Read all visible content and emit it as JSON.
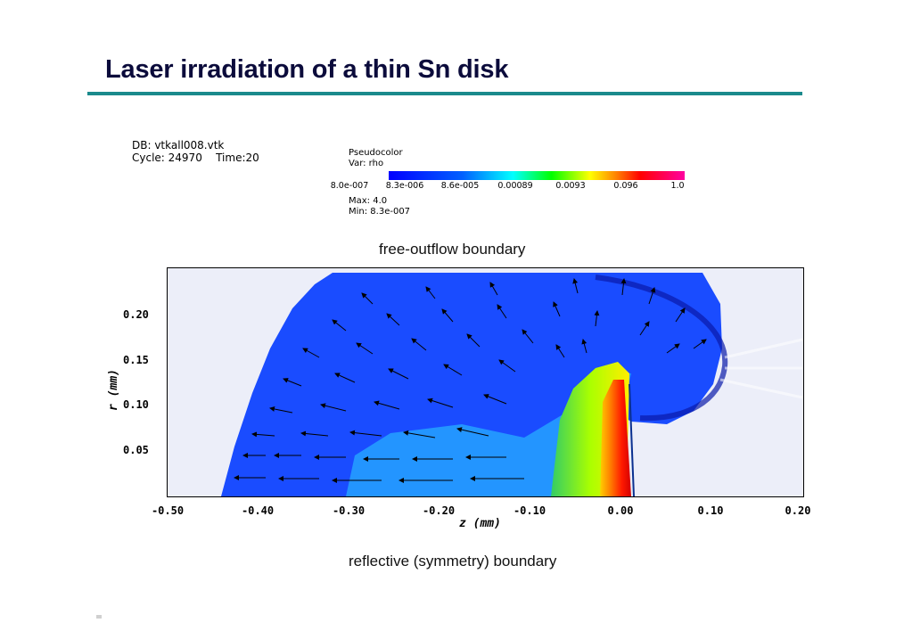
{
  "slide": {
    "title": "Laser irradiation of a thin Sn disk"
  },
  "metadata": {
    "db": "DB: vtkall008.vtk",
    "cycle": "Cycle: 24970",
    "time": "Time:20",
    "plot_type": "Pseudocolor",
    "var": "Var: rho",
    "max": "Max:  4.0",
    "min": "Min:  8.3e-007"
  },
  "colorbar": {
    "labels": [
      "8.0e-007",
      "8.3e-006",
      "8.6e-005",
      "0.00089",
      "0.0093",
      "0.096",
      "1.0"
    ]
  },
  "boundaries": {
    "top": "free-outflow boundary",
    "bottom": "reflective (symmetry) boundary"
  },
  "axes": {
    "x_label": "z  (mm)",
    "y_label": "r  (mm)",
    "x_ticks": [
      "-0.50",
      "-0.40",
      "-0.30",
      "-0.20",
      "-0.10",
      "0.00",
      "0.10",
      "0.20"
    ],
    "y_ticks": [
      "0.20",
      "0.15",
      "0.10",
      "0.05"
    ]
  }
}
